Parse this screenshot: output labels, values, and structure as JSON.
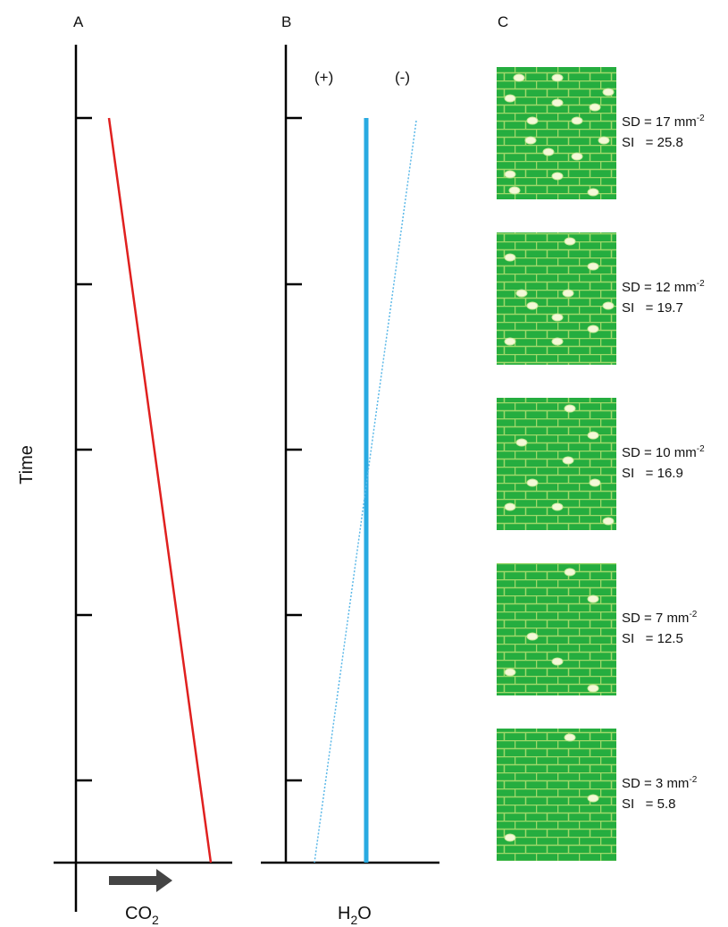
{
  "panels": {
    "a": {
      "label": "A",
      "y_axis_label": "Time",
      "x_axis_label": {
        "main": "CO",
        "sub": "2"
      }
    },
    "b": {
      "label": "B",
      "x_axis_label": {
        "pre": "H",
        "sub": "2",
        "post": "O"
      },
      "plus": "(+)",
      "minus": "(-)"
    },
    "c": {
      "label": "C",
      "tiles": [
        {
          "sd": "SD = 17 mm",
          "sd_exp": "-2",
          "si": "SI   = 25.8"
        },
        {
          "sd": "SD = 12 mm",
          "sd_exp": "-2",
          "si": "SI   = 19.7"
        },
        {
          "sd": "SD = 10 mm",
          "sd_exp": "-2",
          "si": "SI   = 16.9"
        },
        {
          "sd": "SD = 7 mm",
          "sd_exp": "-2",
          "si": "SI   = 12.5"
        },
        {
          "sd": "SD = 3 mm",
          "sd_exp": "-2",
          "si": "SI   = 5.8"
        }
      ]
    }
  }
}
